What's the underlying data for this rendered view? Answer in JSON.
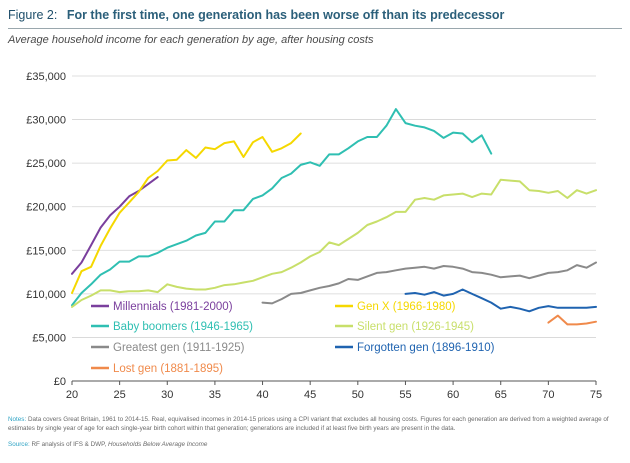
{
  "figure_label": "Figure 2:",
  "headline": "For the first time, one generation has been worse off than its predecessor",
  "subtitle": "Average household income for each generation by age, after housing costs",
  "notes": {
    "label": "Notes:",
    "text": "Data covers Great Britain, 1961 to 2014-15. Real, equivalised incomes in 2014-15 prices using a CPI variant that excludes all housing costs. Figures for each generation are derived from a weighted average of estimates by single year of age for each single-year birth cohort within that generation; generations are included if at least five birth years are present in the data."
  },
  "source": {
    "label": "Source:",
    "text_plain": "RF analysis of IFS & DWP, ",
    "text_italic": "Households Below Average Income"
  },
  "chart_data": {
    "type": "line",
    "title": "",
    "xlabel": "",
    "ylabel": "",
    "xlim": [
      20,
      75
    ],
    "ylim": [
      0,
      35000
    ],
    "x_ticks": [
      20,
      25,
      30,
      35,
      40,
      45,
      50,
      55,
      60,
      65,
      70,
      75
    ],
    "x_tick_labels": [
      "20",
      "25",
      "30",
      "35",
      "40",
      "45",
      "50",
      "55",
      "60",
      "65",
      "70",
      "75"
    ],
    "y_ticks": [
      0,
      5000,
      10000,
      15000,
      20000,
      25000,
      30000,
      35000
    ],
    "y_tick_labels": [
      "£0",
      "£5,000",
      "£10,000",
      "£15,000",
      "£20,000",
      "£25,000",
      "£30,000",
      "£35,000"
    ],
    "grid": true,
    "legend": "inside-bottom",
    "series": [
      {
        "name": "Millennials (1981-2000)",
        "color": "#7a3f9d",
        "x": [
          20,
          21,
          22,
          23,
          24,
          25,
          26,
          27,
          28,
          29
        ],
        "values": [
          12300,
          13600,
          15600,
          17600,
          19000,
          20000,
          21200,
          21800,
          22600,
          23400
        ]
      },
      {
        "name": "Gen X (1966-1980)",
        "color": "#f5d800",
        "x": [
          20,
          21,
          22,
          23,
          24,
          25,
          26,
          27,
          28,
          29,
          30,
          31,
          32,
          33,
          34,
          35,
          36,
          37,
          38,
          39,
          40,
          41,
          42,
          43,
          44
        ],
        "values": [
          10100,
          12600,
          13100,
          15500,
          17500,
          19300,
          20500,
          21700,
          23300,
          24100,
          25300,
          25400,
          26500,
          25600,
          26800,
          26600,
          27300,
          27500,
          25700,
          27400,
          28000,
          26300,
          26700,
          27300,
          28400
        ]
      },
      {
        "name": "Baby boomers (1946-1965)",
        "color": "#2fbfb2",
        "x": [
          20,
          21,
          22,
          23,
          24,
          25,
          26,
          27,
          28,
          29,
          30,
          31,
          32,
          33,
          34,
          35,
          36,
          37,
          38,
          39,
          40,
          41,
          42,
          43,
          44,
          45,
          46,
          47,
          48,
          49,
          50,
          51,
          52,
          53,
          54,
          55,
          56,
          57,
          58,
          59,
          60,
          61,
          62,
          63,
          64
        ],
        "values": [
          8700,
          10100,
          11100,
          12200,
          12800,
          13700,
          13700,
          14300,
          14300,
          14700,
          15300,
          15700,
          16100,
          16700,
          17000,
          18300,
          18300,
          19600,
          19600,
          20900,
          21300,
          22100,
          23300,
          23800,
          24800,
          25100,
          24700,
          26000,
          26000,
          26700,
          27500,
          28000,
          28000,
          29300,
          31200,
          29600,
          29300,
          29100,
          28700,
          27900,
          28500,
          28400,
          27400,
          28200,
          26100
        ]
      },
      {
        "name": "Silent gen (1926-1945)",
        "color": "#c8df6a",
        "x": [
          20,
          21,
          22,
          23,
          24,
          25,
          26,
          27,
          28,
          29,
          30,
          31,
          32,
          33,
          34,
          35,
          36,
          37,
          38,
          39,
          40,
          41,
          42,
          43,
          44,
          45,
          46,
          47,
          48,
          49,
          50,
          51,
          52,
          53,
          54,
          55,
          56,
          57,
          58,
          59,
          60,
          61,
          62,
          63,
          64,
          65,
          66,
          67,
          68,
          69,
          70,
          71,
          72,
          73,
          74,
          75
        ],
        "values": [
          8500,
          9300,
          9800,
          10400,
          10400,
          10200,
          10300,
          10300,
          10400,
          10200,
          11100,
          10800,
          10600,
          10500,
          10500,
          10700,
          11000,
          11100,
          11300,
          11500,
          11900,
          12300,
          12500,
          13000,
          13600,
          14300,
          14800,
          15900,
          15600,
          16300,
          17000,
          17900,
          18300,
          18800,
          19400,
          19400,
          20800,
          21000,
          20800,
          21300,
          21400,
          21500,
          21100,
          21500,
          21400,
          23100,
          23000,
          22900,
          21900,
          21800,
          21600,
          21800,
          21000,
          21900,
          21500,
          21900
        ]
      },
      {
        "name": "Greatest gen (1911-1925)",
        "color": "#8a8a8a",
        "x": [
          40,
          41,
          42,
          43,
          44,
          45,
          46,
          47,
          48,
          49,
          50,
          51,
          52,
          53,
          54,
          55,
          56,
          57,
          58,
          59,
          60,
          61,
          62,
          63,
          64,
          65,
          66,
          67,
          68,
          69,
          70,
          71,
          72,
          73,
          74,
          75
        ],
        "values": [
          9000,
          8900,
          9400,
          10000,
          10100,
          10400,
          10700,
          10900,
          11200,
          11700,
          11600,
          12000,
          12400,
          12500,
          12700,
          12900,
          13000,
          13100,
          12900,
          13200,
          13100,
          12900,
          12500,
          12400,
          12200,
          11900,
          12000,
          12100,
          11800,
          12100,
          12400,
          12500,
          12700,
          13300,
          13000,
          13600
        ]
      },
      {
        "name": "Forgotten gen (1896-1910)",
        "color": "#1f63b0",
        "x": [
          55,
          56,
          57,
          58,
          59,
          60,
          61,
          62,
          63,
          64,
          65,
          66,
          67,
          68,
          69,
          70,
          71,
          72,
          73,
          74,
          75
        ],
        "values": [
          10000,
          10100,
          9900,
          10200,
          9800,
          10000,
          10500,
          10000,
          9500,
          9000,
          8300,
          8500,
          8300,
          8000,
          8400,
          8600,
          8400,
          8400,
          8400,
          8400,
          8500
        ]
      },
      {
        "name": "Lost gen (1881-1895)",
        "color": "#f08a4b",
        "x": [
          70,
          71,
          72,
          73,
          74,
          75
        ],
        "values": [
          6700,
          7500,
          6500,
          6500,
          6600,
          6800
        ]
      }
    ]
  }
}
